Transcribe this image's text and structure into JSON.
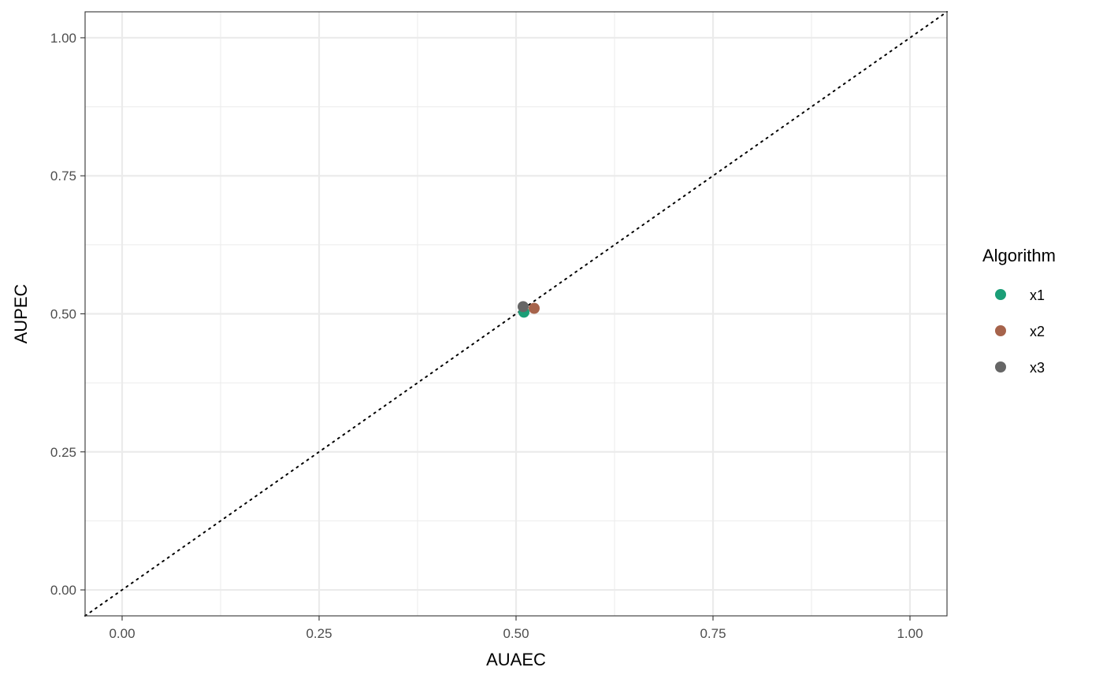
{
  "chart_data": {
    "type": "scatter",
    "title": "",
    "xlabel": "AUAEC",
    "ylabel": "AUPEC",
    "xlim": [
      -0.047,
      1.047
    ],
    "ylim": [
      -0.047,
      1.047
    ],
    "xticks": [
      0.0,
      0.25,
      0.5,
      0.75,
      1.0
    ],
    "yticks": [
      0.0,
      0.25,
      0.5,
      0.75,
      1.0
    ],
    "xtick_labels": [
      "0.00",
      "0.25",
      "0.50",
      "0.75",
      "1.00"
    ],
    "ytick_labels": [
      "0.00",
      "0.25",
      "0.50",
      "0.75",
      "1.00"
    ],
    "grid": true,
    "reference_line": {
      "style": "dotted",
      "slope": 1,
      "intercept": 0
    },
    "legend": {
      "title": "Algorithm",
      "placement": "right"
    },
    "series": [
      {
        "name": "x1",
        "color": "#1b9e77",
        "x": [
          0.51
        ],
        "y": [
          0.503
        ]
      },
      {
        "name": "x2",
        "color": "#a6634b",
        "x": [
          0.523
        ],
        "y": [
          0.51
        ]
      },
      {
        "name": "x3",
        "color": "#666666",
        "x": [
          0.509
        ],
        "y": [
          0.513
        ]
      }
    ]
  }
}
